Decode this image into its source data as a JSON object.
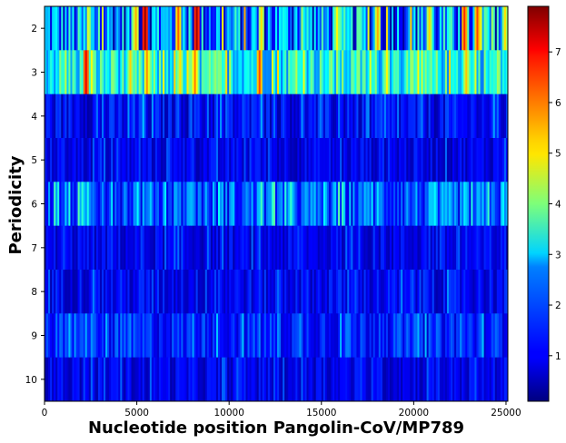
{
  "chart_data": {
    "type": "heatmap",
    "title": "",
    "xlabel": "Nucleotide position Pangolin-CoV/MP789",
    "ylabel": "Periodicity",
    "xlim": [
      0,
      25100
    ],
    "x_ticks": [
      0,
      5000,
      10000,
      15000,
      20000,
      25000
    ],
    "y_categories": [
      2,
      3,
      4,
      5,
      6,
      7,
      8,
      9,
      10
    ],
    "colorbar": {
      "colormap": "jet",
      "range": [
        0.1,
        7.9
      ],
      "ticks": [
        1,
        2,
        3,
        4,
        5,
        6,
        7
      ]
    },
    "rows": [
      {
        "periodicity": 2,
        "base": 2.0,
        "spread": 2.2,
        "hotspots": [
          {
            "x": 5400,
            "value": 7.7
          },
          {
            "x": 8200,
            "value": 7.6
          },
          {
            "x": 7200,
            "value": 6.2
          },
          {
            "x": 4900,
            "value": 5.6
          },
          {
            "x": 22700,
            "value": 6.6
          },
          {
            "x": 23400,
            "value": 6.4
          },
          {
            "x": 18000,
            "value": 5.6
          },
          {
            "x": 11700,
            "value": 5.2
          },
          {
            "x": 15800,
            "value": 5.0
          },
          {
            "x": 20800,
            "value": 5.3
          }
        ]
      },
      {
        "periodicity": 3,
        "base": 3.1,
        "spread": 1.4,
        "hotspots": [
          {
            "x": 2200,
            "value": 7.1
          },
          {
            "x": 11600,
            "value": 6.4
          },
          {
            "x": 8100,
            "value": 6.0
          },
          {
            "x": 5500,
            "value": 5.8
          },
          {
            "x": 18500,
            "value": 5.0
          },
          {
            "x": 22800,
            "value": 5.4
          },
          {
            "x": 7300,
            "value": 5.2
          }
        ]
      },
      {
        "periodicity": 4,
        "base": 1.0,
        "spread": 0.8,
        "hotspots": [
          {
            "x": 5300,
            "value": 2.6
          },
          {
            "x": 11700,
            "value": 2.4
          }
        ]
      },
      {
        "periodicity": 5,
        "base": 0.9,
        "spread": 0.6,
        "hotspots": []
      },
      {
        "periodicity": 6,
        "base": 1.7,
        "spread": 1.2,
        "hotspots": [
          {
            "x": 2300,
            "value": 3.2
          },
          {
            "x": 5000,
            "value": 3.0
          },
          {
            "x": 11700,
            "value": 3.3
          },
          {
            "x": 18000,
            "value": 2.8
          },
          {
            "x": 22700,
            "value": 2.9
          }
        ]
      },
      {
        "periodicity": 7,
        "base": 0.9,
        "spread": 0.6,
        "hotspots": []
      },
      {
        "periodicity": 8,
        "base": 1.0,
        "spread": 0.7,
        "hotspots": []
      },
      {
        "periodicity": 9,
        "base": 1.3,
        "spread": 0.8,
        "hotspots": [
          {
            "x": 2200,
            "value": 2.4
          },
          {
            "x": 8000,
            "value": 2.3
          }
        ]
      },
      {
        "periodicity": 10,
        "base": 0.9,
        "spread": 0.6,
        "hotspots": []
      }
    ]
  }
}
